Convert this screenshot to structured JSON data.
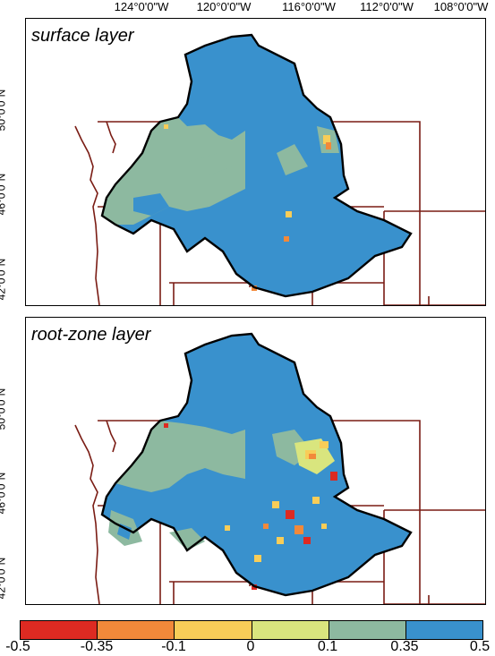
{
  "longitude_ticks": [
    "124°0'0\"W",
    "120°0'0\"W",
    "116°0'0\"W",
    "112°0'0\"W",
    "108°0'0\"W"
  ],
  "latitude_ticks": [
    "50°0'0\"N",
    "46°0'0\"N",
    "42°0'0\"N"
  ],
  "panels": [
    {
      "title": "surface layer"
    },
    {
      "title": "root-zone layer"
    }
  ],
  "legend": {
    "breaks": [
      "-0.5",
      "-0.35",
      "-0.1",
      "0",
      "0.1",
      "0.35",
      "0.5"
    ],
    "colors": [
      "#dd2a22",
      "#f2893a",
      "#f8cd58",
      "#d9e57e",
      "#8db9a0",
      "#3991cd"
    ]
  },
  "colors": {
    "basin_fill": "#3991cd",
    "basin_outline": "#000000",
    "state_boundaries": "#7a1c14"
  }
}
